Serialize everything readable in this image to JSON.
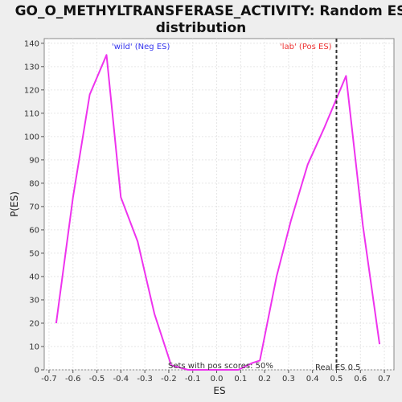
{
  "chart_data": {
    "type": "line",
    "title_line1": "GO_O_METHYLTRANSFERASE_ACTIVITY: Random ES",
    "title_line2": "distribution",
    "xlabel": "ES",
    "ylabel": "P(ES)",
    "xlim": [
      -0.72,
      0.74
    ],
    "ylim": [
      0,
      142
    ],
    "x_ticks": [
      -0.7,
      -0.6,
      -0.5,
      -0.4,
      -0.3,
      -0.2,
      -0.1,
      0.0,
      0.1,
      0.2,
      0.3,
      0.4,
      0.5,
      0.6,
      0.7
    ],
    "x_tick_labels": [
      "-0.7",
      "-0.6",
      "-0.5",
      "-0.4",
      "-0.3",
      "-0.2",
      "-0.1",
      "0.0",
      "0.1",
      "0.2",
      "0.3",
      "0.4",
      "0.5",
      "0.6",
      "0.7"
    ],
    "y_ticks": [
      0,
      10,
      20,
      30,
      40,
      50,
      60,
      70,
      80,
      90,
      100,
      110,
      120,
      130,
      140
    ],
    "y_tick_labels": [
      "0",
      "10",
      "20",
      "30",
      "40",
      "50",
      "60",
      "70",
      "80",
      "90",
      "100",
      "110",
      "120",
      "130",
      "140"
    ],
    "grid": true,
    "series": [
      {
        "color": "#ee33ee",
        "x": [
          -0.67,
          -0.6,
          -0.53,
          -0.46,
          -0.4,
          -0.33,
          -0.26,
          -0.19,
          -0.12,
          -0.05,
          0.02,
          0.09,
          0.15,
          0.18,
          0.25,
          0.31,
          0.38,
          0.45,
          0.54,
          0.61,
          0.68
        ],
        "y": [
          20,
          74,
          118,
          135,
          74,
          55,
          24,
          2,
          0,
          0,
          0,
          0,
          3,
          4,
          40,
          64,
          88,
          104,
          126,
          62,
          11
        ]
      }
    ],
    "vline": {
      "x": 0.5,
      "label": "Real ES 0.5",
      "color": "#333333"
    },
    "annotations": {
      "neg_label": "'wild' (Neg ES)",
      "neg_color": "#3333ee",
      "pos_label": "'lab' (Pos ES)",
      "pos_color": "#ee3333",
      "pos_scores_label": "Sets with pos scores: 50%"
    }
  }
}
